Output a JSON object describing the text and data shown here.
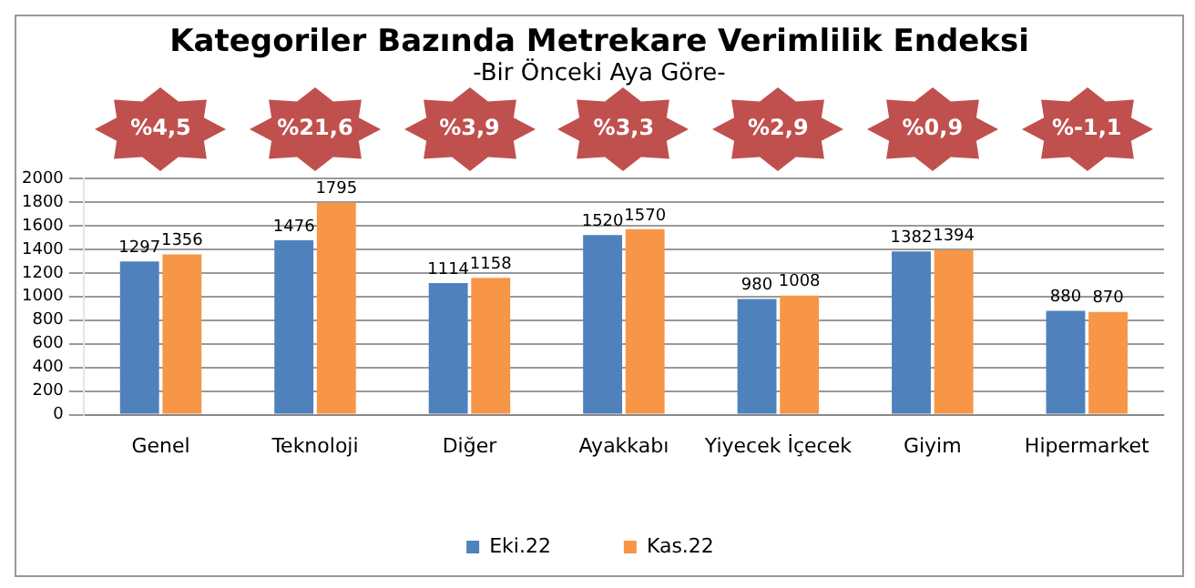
{
  "chart_data": {
    "type": "bar",
    "title": "Kategoriler Bazında Metrekare Verimlilik Endeksi",
    "subtitle": "-Bir Önceki Aya Göre-",
    "categories": [
      "Genel",
      "Teknoloji",
      "Diğer",
      "Ayakkabı",
      "Yiyecek İçecek",
      "Giyim",
      "Hipermarket"
    ],
    "series": [
      {
        "name": "Eki.22",
        "color": "#4f81bd",
        "values": [
          1297,
          1476,
          1114,
          1520,
          980,
          1382,
          880
        ]
      },
      {
        "name": "Kas.22",
        "color": "#f79646",
        "values": [
          1356,
          1795,
          1158,
          1570,
          1008,
          1394,
          870
        ]
      }
    ],
    "annotations": [
      "%4,5",
      "%21,6",
      "%3,9",
      "%3,3",
      "%2,9",
      "%0,9",
      "%-1,1"
    ],
    "ylim": [
      0,
      2000
    ],
    "yticks": [
      0,
      200,
      400,
      600,
      800,
      1000,
      1200,
      1400,
      1600,
      1800,
      2000
    ],
    "grid": "y",
    "legend": "bottom",
    "data_labels": true
  }
}
